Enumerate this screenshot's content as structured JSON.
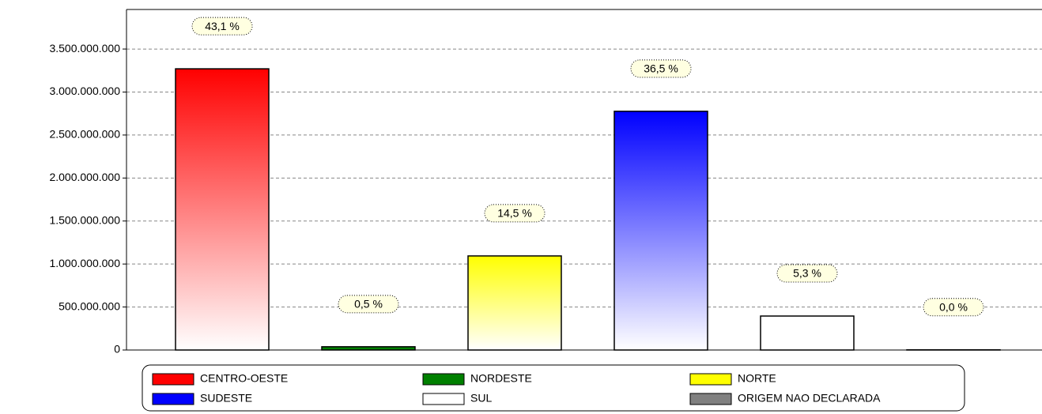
{
  "chart_data": {
    "type": "bar",
    "categories": [
      "CENTRO-OESTE",
      "NORDESTE",
      "NORTE",
      "SUDESTE",
      "SUL",
      "ORIGEM NAO DECLARADA"
    ],
    "values": [
      3270000000,
      38000000,
      1094000000,
      2776000000,
      395000000,
      2000000
    ],
    "share_labels": [
      "43,1 %",
      "0,5 %",
      "14,5 %",
      "36,5 %",
      "5,3 %",
      "0,0 %"
    ],
    "colors": [
      "#ff0000",
      "#008000",
      "#ffff00",
      "#0000ff",
      "#ffffff",
      "#808080"
    ],
    "gradient": [
      true,
      false,
      true,
      true,
      false,
      false
    ],
    "ylim": [
      0,
      3960000000
    ],
    "yticks": [
      0,
      {
        "value": 500000000,
        "label": "500.000.000"
      },
      {
        "value": 1000000000,
        "label": "1.000.000.000"
      },
      {
        "value": 1500000000,
        "label": "1.500.000.000"
      },
      {
        "value": 2000000000,
        "label": "2.000.000.000"
      },
      {
        "value": 2500000000,
        "label": "2.500.000.000"
      },
      {
        "value": 3000000000,
        "label": "3.000.000.000"
      },
      {
        "value": 3500000000,
        "label": "3.500.000.000"
      }
    ],
    "grid": true
  }
}
